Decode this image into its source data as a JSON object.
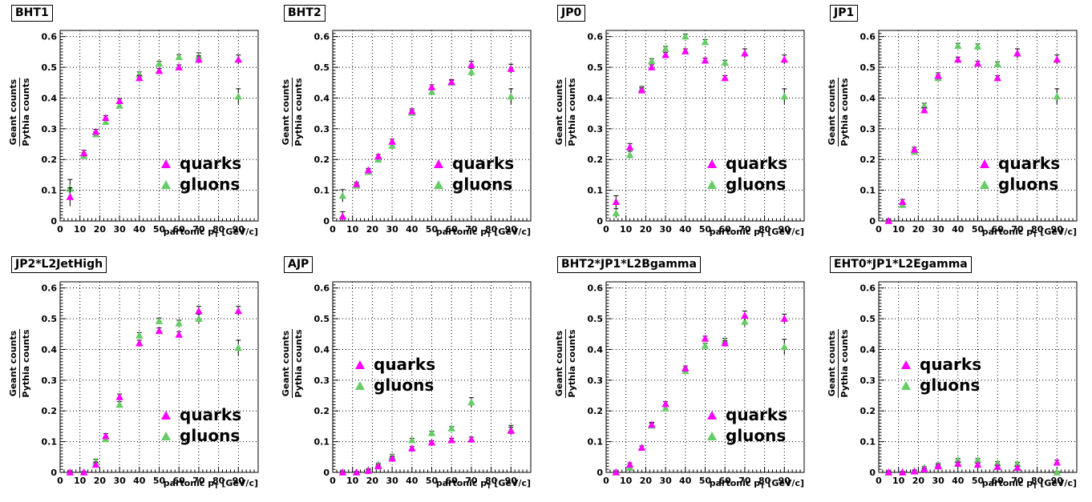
{
  "common": {
    "ylabel_num": "Geant counts",
    "ylabel_den": "Pythia counts",
    "xlabel_main": "partonic p",
    "xlabel_sub": "T",
    "xlabel_unit": "[GeV/c]",
    "legend_quarks": "quarks",
    "legend_gluons": "gluons",
    "colors": {
      "quarks": "#ff00ff",
      "gluons": "#66cc66",
      "errorbar": "#000000",
      "grid": "#000000"
    }
  },
  "chart_data": [
    {
      "title": "BHT1",
      "type": "scatter",
      "xlim": [
        0,
        100
      ],
      "ylim": [
        0,
        0.62
      ],
      "grid": true,
      "legend_position": "right-middle",
      "xticks": [
        0,
        10,
        20,
        30,
        40,
        50,
        60,
        70,
        80,
        90
      ],
      "yticks": [
        0,
        0.1,
        0.2,
        0.3,
        0.4,
        0.5,
        0.6
      ],
      "series": [
        {
          "name": "quarks",
          "x": [
            5,
            12,
            18,
            23,
            30,
            40,
            50,
            60,
            70,
            90
          ],
          "y": [
            0.078,
            0.22,
            0.29,
            0.335,
            0.39,
            0.465,
            0.488,
            0.5,
            0.525,
            0.525
          ],
          "err": [
            0.03,
            0.01,
            0.008,
            0.008,
            0.008,
            0.008,
            0.008,
            0.008,
            0.012,
            0.015
          ]
        },
        {
          "name": "gluons",
          "x": [
            5,
            12,
            18,
            23,
            30,
            40,
            50,
            60,
            70,
            90
          ],
          "y": [
            0.105,
            0.212,
            0.282,
            0.322,
            0.375,
            0.477,
            0.512,
            0.533,
            0.535,
            0.405
          ],
          "err": [
            0.03,
            0.01,
            0.008,
            0.008,
            0.008,
            0.008,
            0.008,
            0.008,
            0.012,
            0.025
          ]
        }
      ]
    },
    {
      "title": "BHT2",
      "type": "scatter",
      "xlim": [
        0,
        100
      ],
      "ylim": [
        0,
        0.62
      ],
      "grid": true,
      "legend_position": "right-middle",
      "xticks": [
        0,
        10,
        20,
        30,
        40,
        50,
        60,
        70,
        80,
        90
      ],
      "yticks": [
        0,
        0.1,
        0.2,
        0.3,
        0.4,
        0.5,
        0.6
      ],
      "series": [
        {
          "name": "quarks",
          "x": [
            5,
            12,
            18,
            23,
            30,
            40,
            50,
            60,
            70,
            90
          ],
          "y": [
            0.015,
            0.12,
            0.165,
            0.21,
            0.258,
            0.357,
            0.435,
            0.452,
            0.508,
            0.495
          ],
          "err": [
            0.015,
            0.006,
            0.006,
            0.006,
            0.008,
            0.008,
            0.008,
            0.008,
            0.012,
            0.015
          ]
        },
        {
          "name": "gluons",
          "x": [
            5,
            12,
            18,
            23,
            30,
            40,
            50,
            60,
            70,
            90
          ],
          "y": [
            0.082,
            0.115,
            0.16,
            0.2,
            0.245,
            0.352,
            0.42,
            0.45,
            0.485,
            0.405
          ],
          "err": [
            0.02,
            0.006,
            0.006,
            0.006,
            0.008,
            0.008,
            0.008,
            0.008,
            0.012,
            0.025
          ]
        }
      ]
    },
    {
      "title": "JP0",
      "type": "scatter",
      "xlim": [
        0,
        100
      ],
      "ylim": [
        0,
        0.62
      ],
      "grid": true,
      "legend_position": "right-middle",
      "xticks": [
        0,
        10,
        20,
        30,
        40,
        50,
        60,
        70,
        80,
        90
      ],
      "yticks": [
        0,
        0.1,
        0.2,
        0.3,
        0.4,
        0.5,
        0.6
      ],
      "series": [
        {
          "name": "quarks",
          "x": [
            5,
            12,
            18,
            23,
            30,
            40,
            50,
            60,
            70,
            90
          ],
          "y": [
            0.062,
            0.24,
            0.425,
            0.5,
            0.54,
            0.552,
            0.522,
            0.465,
            0.545,
            0.525
          ],
          "err": [
            0.02,
            0.012,
            0.008,
            0.008,
            0.008,
            0.008,
            0.008,
            0.008,
            0.015,
            0.015
          ]
        },
        {
          "name": "gluons",
          "x": [
            5,
            12,
            18,
            23,
            30,
            40,
            50,
            60,
            70,
            90
          ],
          "y": [
            0.025,
            0.215,
            0.43,
            0.52,
            0.56,
            0.6,
            0.582,
            0.515,
            0.545,
            0.405
          ],
          "err": [
            0.015,
            0.012,
            0.008,
            0.008,
            0.008,
            0.008,
            0.008,
            0.008,
            0.015,
            0.025
          ]
        }
      ]
    },
    {
      "title": "JP1",
      "type": "scatter",
      "xlim": [
        0,
        100
      ],
      "ylim": [
        0,
        0.62
      ],
      "grid": true,
      "legend_position": "right-middle",
      "xticks": [
        0,
        10,
        20,
        30,
        40,
        50,
        60,
        70,
        80,
        90
      ],
      "yticks": [
        0,
        0.1,
        0.2,
        0.3,
        0.4,
        0.5,
        0.6
      ],
      "series": [
        {
          "name": "quarks",
          "x": [
            5,
            12,
            18,
            23,
            30,
            40,
            50,
            60,
            70,
            90
          ],
          "y": [
            0.0,
            0.062,
            0.232,
            0.36,
            0.472,
            0.525,
            0.512,
            0.465,
            0.545,
            0.525
          ],
          "err": [
            0.005,
            0.008,
            0.008,
            0.008,
            0.01,
            0.008,
            0.008,
            0.008,
            0.015,
            0.015
          ]
        },
        {
          "name": "gluons",
          "x": [
            5,
            12,
            18,
            23,
            30,
            40,
            50,
            60,
            70,
            90
          ],
          "y": [
            0.0,
            0.052,
            0.225,
            0.375,
            0.465,
            0.57,
            0.568,
            0.51,
            0.545,
            0.405
          ],
          "err": [
            0.005,
            0.008,
            0.008,
            0.008,
            0.01,
            0.008,
            0.008,
            0.008,
            0.015,
            0.025
          ]
        }
      ]
    },
    {
      "title": "JP2*L2JetHigh",
      "type": "scatter",
      "xlim": [
        0,
        100
      ],
      "ylim": [
        0,
        0.62
      ],
      "grid": true,
      "legend_position": "right-middle",
      "xticks": [
        0,
        10,
        20,
        30,
        40,
        50,
        60,
        70,
        80,
        90
      ],
      "yticks": [
        0,
        0.1,
        0.2,
        0.3,
        0.4,
        0.5,
        0.6
      ],
      "series": [
        {
          "name": "quarks",
          "x": [
            5,
            12,
            18,
            23,
            30,
            40,
            50,
            60,
            70,
            90
          ],
          "y": [
            0.0,
            0.0,
            0.025,
            0.118,
            0.245,
            0.42,
            0.46,
            0.448,
            0.525,
            0.525
          ],
          "err": [
            0.003,
            0.003,
            0.008,
            0.008,
            0.01,
            0.01,
            0.01,
            0.01,
            0.015,
            0.015
          ]
        },
        {
          "name": "gluons",
          "x": [
            5,
            12,
            18,
            23,
            30,
            40,
            50,
            60,
            70,
            90
          ],
          "y": [
            0.0,
            0.0,
            0.035,
            0.108,
            0.22,
            0.445,
            0.492,
            0.485,
            0.5,
            0.405
          ],
          "err": [
            0.003,
            0.003,
            0.008,
            0.008,
            0.01,
            0.01,
            0.01,
            0.01,
            0.015,
            0.025
          ]
        }
      ]
    },
    {
      "title": "AJP",
      "type": "scatter",
      "xlim": [
        0,
        100
      ],
      "ylim": [
        0,
        0.62
      ],
      "grid": true,
      "legend_position": "left-middle",
      "xticks": [
        0,
        10,
        20,
        30,
        40,
        50,
        60,
        70,
        80,
        90
      ],
      "yticks": [
        0,
        0.1,
        0.2,
        0.3,
        0.4,
        0.5,
        0.6
      ],
      "series": [
        {
          "name": "quarks",
          "x": [
            5,
            12,
            18,
            23,
            30,
            40,
            50,
            60,
            70,
            90
          ],
          "y": [
            0.0,
            0.0,
            0.005,
            0.02,
            0.045,
            0.078,
            0.097,
            0.105,
            0.107,
            0.135
          ],
          "err": [
            0.003,
            0.003,
            0.004,
            0.005,
            0.006,
            0.006,
            0.006,
            0.006,
            0.008,
            0.012
          ]
        },
        {
          "name": "gluons",
          "x": [
            5,
            12,
            18,
            23,
            30,
            40,
            50,
            60,
            70,
            90
          ],
          "y": [
            0.0,
            0.0,
            0.008,
            0.025,
            0.052,
            0.105,
            0.128,
            0.143,
            0.228,
            0.138
          ],
          "err": [
            0.003,
            0.003,
            0.004,
            0.005,
            0.006,
            0.006,
            0.006,
            0.006,
            0.015,
            0.015
          ]
        }
      ]
    },
    {
      "title": "BHT2*JP1*L2Bgamma",
      "type": "scatter",
      "xlim": [
        0,
        100
      ],
      "ylim": [
        0,
        0.62
      ],
      "grid": true,
      "legend_position": "right-middle",
      "xticks": [
        0,
        10,
        20,
        30,
        40,
        50,
        60,
        70,
        80,
        90
      ],
      "yticks": [
        0,
        0.1,
        0.2,
        0.3,
        0.4,
        0.5,
        0.6
      ],
      "series": [
        {
          "name": "quarks",
          "x": [
            5,
            12,
            18,
            23,
            30,
            40,
            50,
            60,
            70,
            90
          ],
          "y": [
            0.0,
            0.025,
            0.08,
            0.155,
            0.222,
            0.338,
            0.435,
            0.42,
            0.51,
            0.5
          ],
          "err": [
            0.003,
            0.006,
            0.006,
            0.008,
            0.008,
            0.008,
            0.008,
            0.008,
            0.015,
            0.015
          ]
        },
        {
          "name": "gluons",
          "x": [
            5,
            12,
            18,
            23,
            30,
            40,
            50,
            60,
            70,
            90
          ],
          "y": [
            0.0,
            0.015,
            0.08,
            0.152,
            0.208,
            0.33,
            0.412,
            0.428,
            0.49,
            0.408
          ],
          "err": [
            0.003,
            0.006,
            0.006,
            0.008,
            0.008,
            0.008,
            0.008,
            0.008,
            0.015,
            0.025
          ]
        }
      ]
    },
    {
      "title": "EHT0*JP1*L2Egamma",
      "type": "scatter",
      "xlim": [
        0,
        100
      ],
      "ylim": [
        0,
        0.62
      ],
      "grid": true,
      "legend_position": "left-middle",
      "xticks": [
        0,
        10,
        20,
        30,
        40,
        50,
        60,
        70,
        80,
        90
      ],
      "yticks": [
        0,
        0.1,
        0.2,
        0.3,
        0.4,
        0.5,
        0.6
      ],
      "series": [
        {
          "name": "quarks",
          "x": [
            5,
            12,
            18,
            23,
            30,
            40,
            50,
            60,
            70,
            90
          ],
          "y": [
            0.0,
            0.0,
            0.003,
            0.01,
            0.02,
            0.028,
            0.025,
            0.018,
            0.015,
            0.032
          ],
          "err": [
            0.003,
            0.003,
            0.003,
            0.004,
            0.005,
            0.005,
            0.005,
            0.005,
            0.005,
            0.008
          ]
        },
        {
          "name": "gluons",
          "x": [
            5,
            12,
            18,
            23,
            30,
            40,
            50,
            60,
            70,
            90
          ],
          "y": [
            0.0,
            0.0,
            0.005,
            0.015,
            0.025,
            0.04,
            0.04,
            0.03,
            0.028,
            0.0
          ],
          "err": [
            0.003,
            0.003,
            0.003,
            0.004,
            0.005,
            0.005,
            0.005,
            0.005,
            0.005,
            0.003
          ]
        }
      ]
    }
  ]
}
